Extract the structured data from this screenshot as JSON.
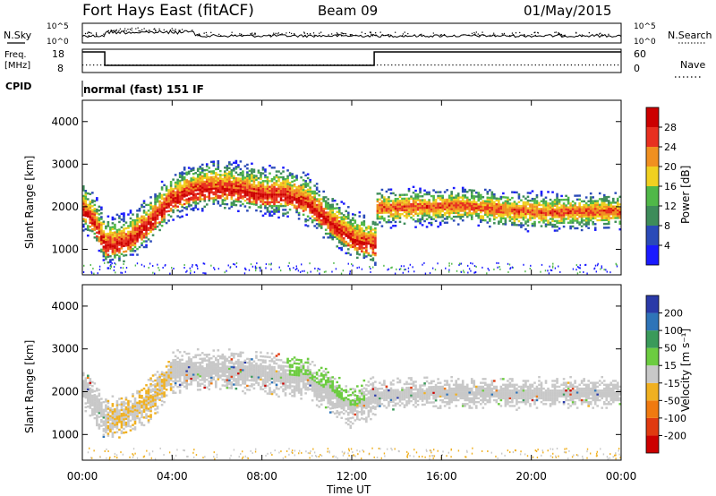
{
  "header": {
    "site": "Fort Hays East (fitACF)",
    "beam": "Beam 09",
    "date": "01/May/2015"
  },
  "noise_panel": {
    "left_label": "N.Sky",
    "right_label": "N.Search",
    "left_ticks": [
      "10^5",
      "10^0"
    ],
    "right_ticks": [
      "10^5",
      "10^0"
    ]
  },
  "freq_panel": {
    "left_label_1": "Freq.",
    "left_label_2": "[MHz]",
    "right_label": "Nave",
    "left_ticks": [
      "18",
      "8"
    ],
    "right_ticks": [
      "60",
      "0"
    ]
  },
  "cpid": {
    "label": "CPID",
    "value": "normal (fast) 151 IF"
  },
  "time_axis": {
    "label": "Time UT",
    "ticks": [
      "00:00",
      "04:00",
      "08:00",
      "12:00",
      "16:00",
      "20:00",
      "00:00"
    ]
  },
  "range_ticks": [
    "1000",
    "2000",
    "3000",
    "4000"
  ],
  "range_label": "Slant Range [km]",
  "power_colorbar": {
    "label": "Power [dB]",
    "ticks": [
      "4",
      "8",
      "12",
      "16",
      "20",
      "24",
      "28"
    ],
    "colors": [
      "#1a1aff",
      "#2a4ab8",
      "#3e8c5a",
      "#50b848",
      "#f0d020",
      "#f09020",
      "#e83020",
      "#cc0000"
    ]
  },
  "velocity_colorbar": {
    "label": "Velocity [m s⁻¹]",
    "ticks": [
      "200",
      "100",
      "50",
      "15",
      "-15",
      "-50",
      "-100",
      "-200"
    ],
    "colors": [
      "#2a3aa8",
      "#2e74b8",
      "#3a9a5a",
      "#6ccc40",
      "#c8c8c8",
      "#f0b020",
      "#f07a10",
      "#e03a10",
      "#cc0000"
    ]
  },
  "chart_data": {
    "type": "heatmap",
    "title": "Fort Hays East (fitACF)",
    "xlabel": "Time UT",
    "ylabel": "Slant Range [km]",
    "xlim": [
      0,
      24
    ],
    "ylim": [
      400,
      4500
    ],
    "frequency": {
      "segments": [
        {
          "start": 0,
          "end": 1,
          "value": 18
        },
        {
          "start": 1,
          "end": 13,
          "value": 10.5
        },
        {
          "start": 13,
          "end": 24,
          "value": 18
        }
      ]
    },
    "power_band_center": [
      {
        "t": 0,
        "r": 2000
      },
      {
        "t": 0.5,
        "r": 1700
      },
      {
        "t": 1,
        "r": 1150
      },
      {
        "t": 2,
        "r": 1250
      },
      {
        "t": 3,
        "r": 1700
      },
      {
        "t": 4,
        "r": 2250
      },
      {
        "t": 5,
        "r": 2450
      },
      {
        "t": 6,
        "r": 2500
      },
      {
        "t": 7,
        "r": 2450
      },
      {
        "t": 8,
        "r": 2350
      },
      {
        "t": 9,
        "r": 2350
      },
      {
        "t": 10,
        "r": 2150
      },
      {
        "t": 11,
        "r": 1700
      },
      {
        "t": 12,
        "r": 1300
      },
      {
        "t": 13,
        "r": 1150
      },
      {
        "t": 13.01,
        "r": 1950
      },
      {
        "t": 15,
        "r": 1980
      },
      {
        "t": 17,
        "r": 2000
      },
      {
        "t": 19,
        "r": 1900
      },
      {
        "t": 21,
        "r": 1850
      },
      {
        "t": 24,
        "r": 1880
      }
    ],
    "velocity_band_center": [
      {
        "t": 0,
        "r": 2100
      },
      {
        "t": 1,
        "r": 1350
      },
      {
        "t": 2,
        "r": 1450
      },
      {
        "t": 3,
        "r": 1800
      },
      {
        "t": 4,
        "r": 2450
      },
      {
        "t": 6,
        "r": 2500
      },
      {
        "t": 8,
        "r": 2400
      },
      {
        "t": 10,
        "r": 2300
      },
      {
        "t": 12,
        "r": 1600
      },
      {
        "t": 13.01,
        "r": 1900
      },
      {
        "t": 16,
        "r": 1950
      },
      {
        "t": 20,
        "r": 1950
      },
      {
        "t": 24,
        "r": 1950
      }
    ],
    "power_range_db": [
      0,
      30
    ],
    "velocity_range_ms": [
      -200,
      200
    ]
  }
}
